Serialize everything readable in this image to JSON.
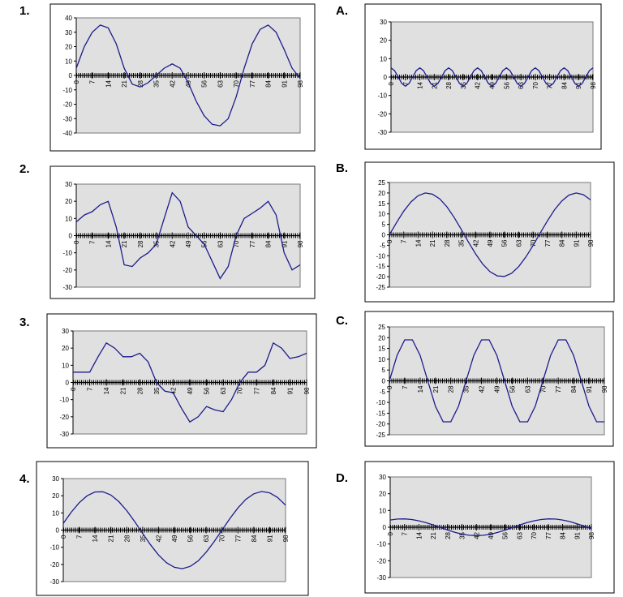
{
  "chart_data": [
    {
      "type": "line",
      "label": "1.",
      "color": "#1c1c8c",
      "x": [
        0,
        3.5,
        7,
        10.5,
        14,
        17.5,
        21,
        24.5,
        28,
        31.5,
        35,
        38.5,
        42,
        45.5,
        49,
        52.5,
        56,
        59.5,
        63,
        66.5,
        70,
        73.5,
        77,
        80.5,
        84,
        87.5,
        91,
        94.5,
        98
      ],
      "values": [
        5,
        20,
        30,
        35,
        33,
        22,
        5,
        -6,
        -8,
        -5,
        0,
        5,
        8,
        5,
        -5,
        -18,
        -28,
        -34,
        -35,
        -30,
        -15,
        5,
        22,
        32,
        35,
        30,
        18,
        5,
        -2
      ],
      "xlim": [
        0,
        98
      ],
      "xticks": [
        0,
        7,
        14,
        21,
        28,
        35,
        42,
        49,
        56,
        63,
        70,
        77,
        84,
        91,
        98
      ],
      "ylim": [
        -40,
        40
      ],
      "yticks": [
        -40,
        -30,
        -20,
        -10,
        0,
        10,
        20,
        30,
        40
      ]
    },
    {
      "type": "line",
      "label": "2.",
      "color": "#1c1c8c",
      "x": [
        0,
        3.5,
        7,
        10.5,
        14,
        17.5,
        21,
        24.5,
        28,
        31.5,
        35,
        38.5,
        42,
        45.5,
        49,
        52.5,
        56,
        59.5,
        63,
        66.5,
        70,
        73.5,
        77,
        80.5,
        84,
        87.5,
        91,
        94.5,
        98
      ],
      "values": [
        8,
        12,
        14,
        18,
        20,
        5,
        -17,
        -18,
        -13,
        -10,
        -5,
        10,
        25,
        20,
        5,
        0,
        -5,
        -15,
        -25,
        -18,
        0,
        10,
        13,
        16,
        20,
        12,
        -10,
        -20,
        -17
      ],
      "xlim": [
        0,
        98
      ],
      "xticks": [
        0,
        7,
        14,
        21,
        28,
        35,
        42,
        49,
        56,
        63,
        70,
        77,
        84,
        91,
        98
      ],
      "ylim": [
        -30,
        30
      ],
      "yticks": [
        -30,
        -20,
        -10,
        0,
        10,
        20,
        30
      ]
    },
    {
      "type": "line",
      "label": "3.",
      "color": "#1c1c8c",
      "x": [
        0,
        3.5,
        7,
        10.5,
        14,
        17.5,
        21,
        24.5,
        28,
        31.5,
        35,
        38.5,
        42,
        45.5,
        49,
        52.5,
        56,
        59.5,
        63,
        66.5,
        70,
        73.5,
        77,
        80.5,
        84,
        87.5,
        91,
        94.5,
        98
      ],
      "values": [
        6,
        6,
        6,
        15,
        23,
        20,
        15,
        15,
        17,
        12,
        0,
        -5,
        -6,
        -15,
        -23,
        -20,
        -14,
        -16,
        -17,
        -10,
        0,
        6,
        6,
        10,
        23,
        20,
        14,
        15,
        17
      ],
      "xlim": [
        0,
        98
      ],
      "xticks": [
        0,
        7,
        14,
        21,
        28,
        35,
        42,
        49,
        56,
        63,
        70,
        77,
        84,
        91,
        98
      ],
      "ylim": [
        -30,
        30
      ],
      "yticks": [
        -30,
        -20,
        -10,
        0,
        10,
        20,
        30
      ]
    },
    {
      "type": "line",
      "label": "4.",
      "color": "#1c1c8c",
      "x": [
        0,
        3.5,
        7,
        10.5,
        14,
        17.5,
        21,
        24.5,
        28,
        31.5,
        35,
        38.5,
        42,
        45.5,
        49,
        52.5,
        56,
        59.5,
        63,
        66.5,
        70,
        73.5,
        77,
        80.5,
        84,
        87.5,
        91,
        94.5,
        98
      ],
      "values": [
        3.9,
        10.4,
        15.9,
        20,
        22.2,
        22.3,
        20.4,
        16.6,
        11.3,
        4.9,
        -2,
        -8.6,
        -14.5,
        -19,
        -21.7,
        -22.5,
        -21.1,
        -17.9,
        -12.9,
        -6.8,
        0,
        6.8,
        12.9,
        17.9,
        21.1,
        22.5,
        21.7,
        19,
        14.5
      ],
      "xlim": [
        0,
        98
      ],
      "xticks": [
        0,
        7,
        14,
        21,
        28,
        35,
        42,
        49,
        56,
        63,
        70,
        77,
        84,
        91,
        98
      ],
      "ylim": [
        -30,
        30
      ],
      "yticks": [
        -30,
        -20,
        -10,
        0,
        10,
        20,
        30
      ]
    },
    {
      "type": "line",
      "label": "A.",
      "color": "#1c1c8c",
      "x": [
        0,
        1.75,
        3.5,
        5.25,
        7,
        8.75,
        10.5,
        12.25,
        14,
        15.75,
        17.5,
        19.25,
        21,
        22.75,
        24.5,
        26.25,
        28,
        29.75,
        31.5,
        33.25,
        35,
        36.75,
        38.5,
        40.25,
        42,
        43.75,
        45.5,
        47.25,
        49,
        50.75,
        52.5,
        54.25,
        56,
        57.75,
        59.5,
        61.25,
        63,
        64.75,
        66.5,
        68.25,
        70,
        71.75,
        73.5,
        75.25,
        77,
        78.75,
        80.5,
        82.25,
        84,
        85.75,
        87.5,
        89.25,
        91,
        92.75,
        94.5,
        96.25,
        98
      ],
      "values": [
        5,
        3.5,
        0,
        -3.5,
        -5,
        -3.5,
        0,
        3.5,
        5,
        3.5,
        0,
        -3.5,
        -5,
        -3.5,
        0,
        3.5,
        5,
        3.5,
        0,
        -3.5,
        -5,
        -3.5,
        0,
        3.5,
        5,
        3.5,
        0,
        -3.5,
        -5,
        -3.5,
        0,
        3.5,
        5,
        3.5,
        0,
        -3.5,
        -5,
        -3.5,
        0,
        3.5,
        5,
        3.5,
        0,
        -3.5,
        -5,
        -3.5,
        0,
        3.5,
        5,
        3.5,
        0,
        -3.5,
        -5,
        -3.5,
        0,
        3.5,
        5
      ],
      "xlim": [
        0,
        98
      ],
      "xticks": [
        0,
        7,
        14,
        21,
        28,
        35,
        42,
        49,
        56,
        63,
        70,
        77,
        84,
        91,
        98
      ],
      "ylim": [
        -30,
        30
      ],
      "yticks": [
        -30,
        -20,
        -10,
        0,
        10,
        20,
        30
      ]
    },
    {
      "type": "line",
      "label": "B.",
      "color": "#1c1c8c",
      "x": [
        0,
        3.5,
        7,
        10.5,
        14,
        17.5,
        21,
        24.5,
        28,
        31.5,
        35,
        38.5,
        42,
        45.5,
        49,
        52.5,
        56,
        59.5,
        63,
        66.5,
        70,
        73.5,
        77,
        80.5,
        84,
        87.5,
        91,
        94.5,
        98
      ],
      "values": [
        0,
        5.9,
        11.3,
        15.7,
        18.7,
        20,
        19.4,
        17.2,
        13.4,
        8.4,
        2.6,
        -3.4,
        -9.1,
        -14,
        -17.6,
        -19.6,
        -19.9,
        -18.4,
        -15.2,
        -10.6,
        -5.1,
        0.9,
        6.7,
        12,
        16.2,
        19,
        20,
        19.2,
        16.7
      ],
      "xlim": [
        0,
        98
      ],
      "xticks": [
        0,
        7,
        14,
        21,
        28,
        35,
        42,
        49,
        56,
        63,
        70,
        77,
        84,
        91,
        98
      ],
      "ylim": [
        -25,
        25
      ],
      "yticks": [
        -25,
        -20,
        -15,
        -10,
        -5,
        0,
        5,
        10,
        15,
        20,
        25
      ]
    },
    {
      "type": "line",
      "label": "C.",
      "color": "#1c1c8c",
      "x": [
        0,
        3.5,
        7,
        10.5,
        14,
        17.5,
        21,
        24.5,
        28,
        31.5,
        35,
        38.5,
        42,
        45.5,
        49,
        52.5,
        56,
        59.5,
        63,
        66.5,
        70,
        73.5,
        77,
        80.5,
        84,
        87.5,
        91,
        94.5,
        98
      ],
      "values": [
        0,
        11.8,
        19,
        19,
        11.8,
        0,
        -11.8,
        -19,
        -19,
        -11.8,
        0,
        11.8,
        19,
        19,
        11.8,
        0,
        -11.8,
        -19,
        -19,
        -11.8,
        0,
        11.8,
        19,
        19,
        11.8,
        0,
        -11.8,
        -19,
        -19
      ],
      "xlim": [
        0,
        98
      ],
      "xticks": [
        0,
        7,
        14,
        21,
        28,
        35,
        42,
        49,
        56,
        63,
        70,
        77,
        84,
        91,
        98
      ],
      "ylim": [
        -25,
        25
      ],
      "yticks": [
        -25,
        -20,
        -15,
        -10,
        -5,
        0,
        5,
        10,
        15,
        20,
        25
      ]
    },
    {
      "type": "line",
      "label": "D.",
      "color": "#1c1c8c",
      "x": [
        0,
        3.5,
        7,
        10.5,
        14,
        17.5,
        21,
        24.5,
        28,
        31.5,
        35,
        38.5,
        42,
        45.5,
        49,
        52.5,
        56,
        59.5,
        63,
        66.5,
        70,
        73.5,
        77,
        80.5,
        84,
        87.5,
        91,
        94.5,
        98
      ],
      "values": [
        4.3,
        4.9,
        5,
        4.6,
        3.8,
        2.7,
        1.3,
        -0.2,
        -1.7,
        -3,
        -4.1,
        -4.8,
        -5,
        -4.8,
        -4.1,
        -3,
        -1.7,
        -0.2,
        1.3,
        2.7,
        3.8,
        4.6,
        5,
        4.9,
        4.3,
        3.4,
        2.1,
        0.7,
        -0.9
      ],
      "xlim": [
        0,
        98
      ],
      "xticks": [
        0,
        7,
        14,
        21,
        28,
        35,
        42,
        49,
        56,
        63,
        70,
        77,
        84,
        91,
        98
      ],
      "ylim": [
        -30,
        30
      ],
      "yticks": [
        -30,
        -20,
        -10,
        0,
        10,
        20,
        30
      ]
    }
  ]
}
